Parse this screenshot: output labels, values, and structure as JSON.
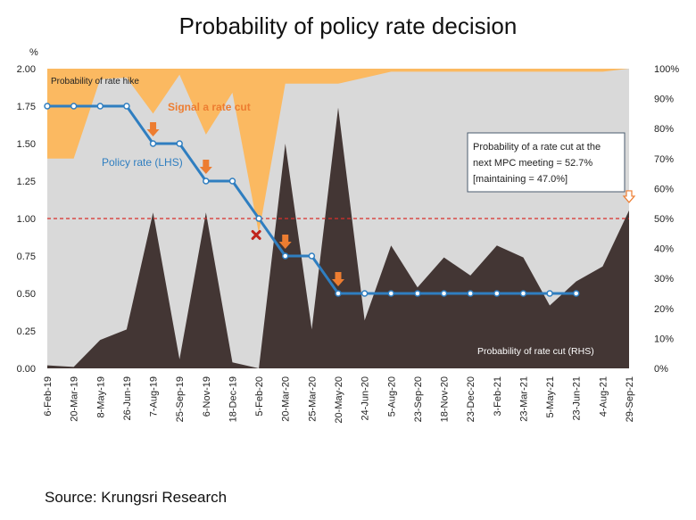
{
  "chart_data": {
    "type": "area",
    "title": "Probability of policy rate decision",
    "source": "Source: Krungsri Research",
    "y_left_unit": "%",
    "y_left_ticks": [
      "0.00",
      "0.25",
      "0.50",
      "0.75",
      "1.00",
      "1.25",
      "1.50",
      "1.75",
      "2.00"
    ],
    "y_left_range": [
      0,
      2
    ],
    "y_right_ticks": [
      "0%",
      "10%",
      "20%",
      "30%",
      "40%",
      "50%",
      "60%",
      "70%",
      "80%",
      "90%",
      "100%"
    ],
    "y_right_range": [
      0,
      100
    ],
    "categories": [
      "6-Feb-19",
      "20-Mar-19",
      "8-May-19",
      "26-Jun-19",
      "7-Aug-19",
      "25-Sep-19",
      "6-Nov-19",
      "18-Dec-19",
      "5-Feb-20",
      "20-Mar-20",
      "25-Mar-20",
      "20-May-20",
      "24-Jun-20",
      "5-Aug-20",
      "23-Sep-20",
      "18-Nov-20",
      "23-Dec-20",
      "3-Feb-21",
      "23-Mar-21",
      "5-May-21",
      "23-Jun-21",
      "4-Aug-21",
      "29-Sep-21"
    ],
    "rate_cut_x": [
      0,
      1,
      2,
      3,
      4,
      5,
      6,
      7,
      8,
      9,
      10,
      11,
      12,
      13,
      14,
      15,
      16,
      17,
      18,
      19,
      20,
      21,
      22
    ],
    "rate_cut_prob": [
      1,
      0.5,
      9.5,
      13,
      52,
      3,
      52,
      2,
      0,
      75,
      13,
      87,
      16,
      41,
      27,
      37,
      31,
      41,
      37,
      21,
      29,
      34,
      52.7
    ],
    "rate_hike_x": [
      0,
      1,
      2,
      3,
      4,
      5,
      6,
      7,
      8,
      9,
      10,
      11,
      12,
      13,
      14,
      15,
      16,
      17,
      18,
      19,
      20,
      21,
      22
    ],
    "rate_hike_prob": [
      30,
      30,
      3.5,
      3,
      15,
      2,
      22,
      8,
      55,
      5,
      5,
      5,
      3,
      1,
      1,
      1,
      1,
      1,
      1,
      1,
      1,
      1,
      0
    ],
    "policy_rate_x": [
      0,
      1,
      2,
      3,
      4,
      5,
      6,
      7,
      8,
      9,
      10,
      11,
      12,
      13,
      14,
      15,
      16,
      17,
      18,
      19,
      20
    ],
    "policy_rate": [
      1.75,
      1.75,
      1.75,
      1.75,
      1.5,
      1.5,
      1.25,
      1.25,
      1.0,
      0.75,
      0.75,
      0.5,
      0.5,
      0.5,
      0.5,
      0.5,
      0.5,
      0.5,
      0.5,
      0.5,
      0.5
    ],
    "threshold_value_left": 1.0,
    "cut_signal_arrow_x": [
      4,
      6,
      9,
      11
    ],
    "no_cut_marker_x": 7.9,
    "labels": {
      "rate_hike": "Probability of rate hike",
      "signal": "Signal a rate cut",
      "policy_rate": "Policy rate (LHS)",
      "rate_cut": "Probability of rate cut (RHS)",
      "callout": [
        "Probability of a rate cut at the",
        "next MPC meeting = 52.7%",
        "[maintaining = 47.0%]"
      ]
    },
    "colors": {
      "background_area": "#d9d9d9",
      "rate_hike": "#fbb961",
      "rate_cut": "#433634",
      "policy_rate": "#2f7ec0",
      "signal": "#ed7d31",
      "threshold": "#d9302c",
      "marker": "#c0241c"
    }
  }
}
